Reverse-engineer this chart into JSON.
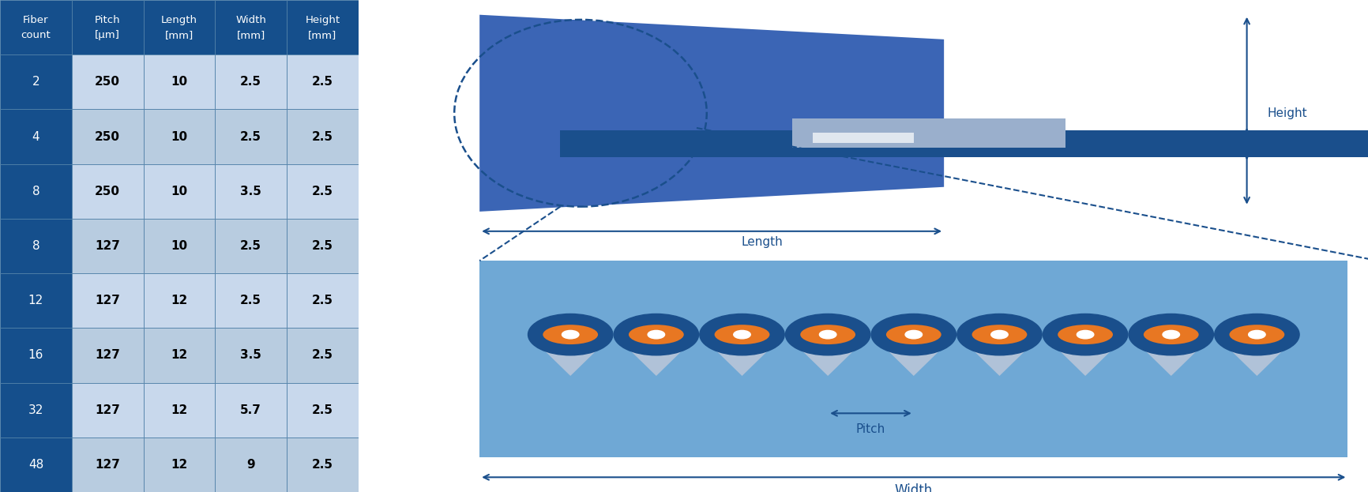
{
  "table_headers": [
    "Fiber\ncount",
    "Pitch\n[μm]",
    "Length\n[mm]",
    "Width\n[mm]",
    "Height\n[mm]"
  ],
  "table_data": [
    [
      "2",
      "250",
      "10",
      "2.5",
      "2.5"
    ],
    [
      "4",
      "250",
      "10",
      "2.5",
      "2.5"
    ],
    [
      "8",
      "250",
      "10",
      "3.5",
      "2.5"
    ],
    [
      "8",
      "127",
      "10",
      "2.5",
      "2.5"
    ],
    [
      "12",
      "127",
      "12",
      "2.5",
      "2.5"
    ],
    [
      "16",
      "127",
      "12",
      "3.5",
      "2.5"
    ],
    [
      "32",
      "127",
      "12",
      "5.7",
      "2.5"
    ],
    [
      "48",
      "127",
      "12",
      "9",
      "2.5"
    ]
  ],
  "header_bg": "#154F8C",
  "header_text": "#FFFFFF",
  "row_bg_dark": "#154F8C",
  "row_bg_light_even": "#C8D8EC",
  "row_bg_light_odd": "#B8CCE0",
  "row_text_dark": "#FFFFFF",
  "row_text_light": "#000000",
  "diagram_bg": "#FFFFFF",
  "dark_blue": "#1A4F8C",
  "medium_blue": "#3B65B5",
  "light_blue": "#6FA8D5",
  "lighter_blue": "#A0C0DC",
  "clamp_color": "#9AAFCC",
  "gray_triangle": "#B0C2D8",
  "fiber_outer": "#1A4F8C",
  "fiber_orange": "#E87722",
  "fiber_white": "#FFFFFF",
  "annotation_color": "#1A4F8C",
  "dashed_color": "#1A4F8C",
  "border_color": "#5080A8"
}
